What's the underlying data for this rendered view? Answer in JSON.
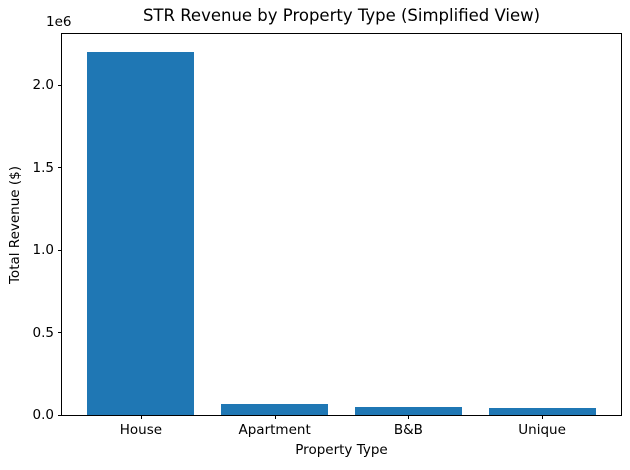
{
  "chart_data": {
    "type": "bar",
    "title": "STR Revenue by Property Type (Simplified View)",
    "xlabel": "Property Type",
    "ylabel": "Total Revenue ($)",
    "categories": [
      "House",
      "Apartment",
      "B&B",
      "Unique"
    ],
    "values": [
      2200000,
      66000,
      48000,
      42000
    ],
    "ylim": [
      0,
      2310000
    ],
    "yticks": [
      0,
      500000,
      1000000,
      1500000,
      2000000
    ],
    "ytick_labels": [
      "0.0",
      "0.5",
      "1.0",
      "1.5",
      "2.0"
    ],
    "offset_text": "1e6",
    "bar_color": "#1f77b4",
    "axis_color": "#000000",
    "grid": false,
    "legend_position": "none"
  }
}
